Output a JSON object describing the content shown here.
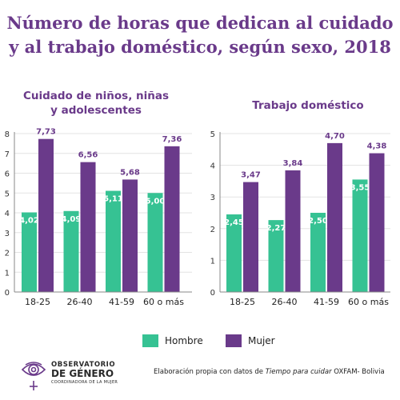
{
  "title_line1": "Número de horas que dedican al cuidado",
  "title_line2": "y al trabajo doméstico, según sexo, 2018",
  "colors": {
    "hombre": "#36c293",
    "mujer": "#6a3a8a",
    "title": "#6a3a8a"
  },
  "chart_data": [
    {
      "type": "bar",
      "title_line1": "Cuidado de niños, niñas",
      "title_line2": "y adolescentes",
      "categories": [
        "18-25",
        "26-40",
        "41-59",
        "60 o más"
      ],
      "series": [
        {
          "name": "Hombre",
          "values": [
            4.02,
            4.09,
            5.11,
            5.0
          ],
          "labels": [
            "4,02",
            "4,09",
            "5,11",
            "5,00"
          ]
        },
        {
          "name": "Mujer",
          "values": [
            7.73,
            6.56,
            5.68,
            7.36
          ],
          "labels": [
            "7,73",
            "6,56",
            "5,68",
            "7,36"
          ]
        }
      ],
      "ylim": [
        0,
        8
      ],
      "yticks": [
        0,
        1,
        2,
        3,
        4,
        5,
        6,
        7,
        8
      ]
    },
    {
      "type": "bar",
      "title_line1": "Trabajo doméstico",
      "categories": [
        "18-25",
        "26-40",
        "41-59",
        "60 o más"
      ],
      "series": [
        {
          "name": "Hombre",
          "values": [
            2.45,
            2.27,
            2.5,
            3.55
          ],
          "labels": [
            "2,45",
            "2,27",
            "2,50",
            "3,55"
          ]
        },
        {
          "name": "Mujer",
          "values": [
            3.47,
            3.84,
            4.7,
            4.38
          ],
          "labels": [
            "3,47",
            "3,84",
            "4,70",
            "4,38"
          ]
        }
      ],
      "ylim": [
        0,
        5
      ],
      "yticks": [
        0,
        1,
        2,
        3,
        4,
        5
      ]
    }
  ],
  "legend": {
    "hombre": "Hombre",
    "mujer": "Mujer"
  },
  "logo": {
    "line1": "OBSERVATORIO",
    "line2": "DE GÉNERO",
    "line3": "COORDINADORA DE LA MUJER"
  },
  "source": {
    "prefix": "Elaboración propia con datos de ",
    "italic": "Tiempo para cuidar",
    "suffix": " OXFAM- Bolivia"
  }
}
